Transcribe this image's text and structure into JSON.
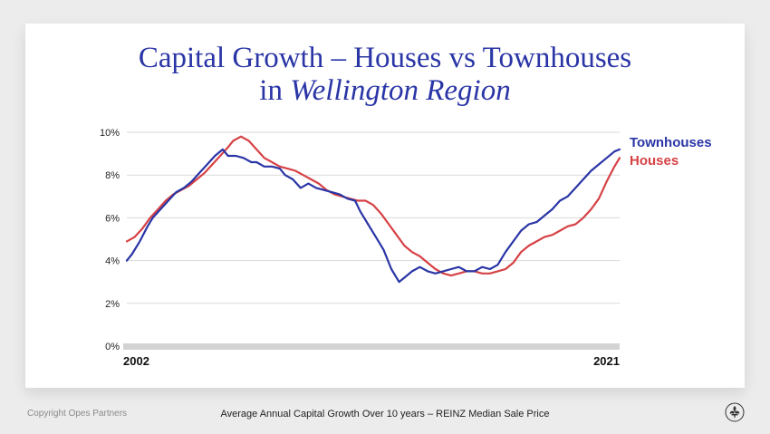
{
  "title_line1": "Capital Growth – Houses vs Townhouses",
  "title_line2_prefix": "in ",
  "title_line2_italic": "Wellington Region",
  "footer": {
    "copyright": "Copyright Opes Partners",
    "caption": "Average Annual Capital Growth Over 10 years – REINZ Median Sale Price"
  },
  "chart_data": {
    "type": "line",
    "title": "",
    "xlabel": "",
    "ylabel": "",
    "xlim": [
      2002,
      2021
    ],
    "ylim": [
      0,
      10
    ],
    "x_tick_labels": [
      {
        "x": 2002,
        "label": "2002"
      },
      {
        "x": 2021,
        "label": "2021"
      }
    ],
    "y_ticks": [
      0,
      2,
      4,
      6,
      8,
      10
    ],
    "y_tick_labels": [
      "0%",
      "2%",
      "4%",
      "6%",
      "8%",
      "10%"
    ],
    "grid": true,
    "legend_placement": "right",
    "series": [
      {
        "name": "Townhouses",
        "color": "#2a35a6",
        "x": [
          2002.0,
          2002.2,
          2002.5,
          2002.8,
          2003.0,
          2003.3,
          2003.6,
          2003.9,
          2004.2,
          2004.5,
          2004.8,
          2005.1,
          2005.4,
          2005.7,
          2005.9,
          2006.2,
          2006.5,
          2006.8,
          2007.0,
          2007.3,
          2007.6,
          2007.9,
          2008.1,
          2008.4,
          2008.7,
          2009.0,
          2009.3,
          2009.6,
          2009.9,
          2010.2,
          2010.5,
          2010.8,
          2011.0,
          2011.3,
          2011.6,
          2011.9,
          2012.2,
          2012.5,
          2012.8,
          2013.0,
          2013.3,
          2013.6,
          2013.9,
          2014.2,
          2014.5,
          2014.8,
          2015.1,
          2015.4,
          2015.7,
          2016.0,
          2016.3,
          2016.6,
          2016.9,
          2017.2,
          2017.5,
          2017.8,
          2018.1,
          2018.4,
          2018.7,
          2019.0,
          2019.3,
          2019.6,
          2019.9,
          2020.2,
          2020.5,
          2020.8,
          2021.0
        ],
        "values": [
          4.0,
          4.3,
          4.9,
          5.6,
          6.0,
          6.4,
          6.8,
          7.2,
          7.4,
          7.7,
          8.1,
          8.5,
          8.9,
          9.2,
          8.9,
          8.9,
          8.8,
          8.6,
          8.6,
          8.4,
          8.4,
          8.3,
          8.0,
          7.8,
          7.4,
          7.6,
          7.4,
          7.3,
          7.2,
          7.1,
          6.9,
          6.8,
          6.3,
          5.7,
          5.1,
          4.5,
          3.6,
          3.0,
          3.3,
          3.5,
          3.7,
          3.5,
          3.4,
          3.5,
          3.6,
          3.7,
          3.5,
          3.5,
          3.7,
          3.6,
          3.8,
          4.4,
          4.9,
          5.4,
          5.7,
          5.8,
          6.1,
          6.4,
          6.8,
          7.0,
          7.4,
          7.8,
          8.2,
          8.5,
          8.8,
          9.1,
          9.2
        ]
      },
      {
        "name": "Houses",
        "color": "#d64145",
        "x": [
          2002.0,
          2002.3,
          2002.6,
          2002.9,
          2003.2,
          2003.5,
          2003.8,
          2004.1,
          2004.4,
          2004.7,
          2005.0,
          2005.3,
          2005.6,
          2005.9,
          2006.1,
          2006.4,
          2006.7,
          2007.0,
          2007.3,
          2007.6,
          2007.9,
          2008.2,
          2008.5,
          2008.8,
          2009.1,
          2009.4,
          2009.7,
          2010.0,
          2010.3,
          2010.6,
          2010.9,
          2011.2,
          2011.5,
          2011.8,
          2012.1,
          2012.4,
          2012.7,
          2013.0,
          2013.3,
          2013.6,
          2013.9,
          2014.2,
          2014.5,
          2014.8,
          2015.1,
          2015.4,
          2015.7,
          2016.0,
          2016.3,
          2016.6,
          2016.9,
          2017.2,
          2017.5,
          2017.8,
          2018.1,
          2018.4,
          2018.7,
          2019.0,
          2019.3,
          2019.6,
          2019.9,
          2020.2,
          2020.5,
          2020.8,
          2021.0
        ],
        "values": [
          4.9,
          5.1,
          5.5,
          6.0,
          6.4,
          6.8,
          7.1,
          7.3,
          7.5,
          7.8,
          8.1,
          8.5,
          8.9,
          9.3,
          9.6,
          9.8,
          9.6,
          9.2,
          8.8,
          8.6,
          8.4,
          8.3,
          8.2,
          8.0,
          7.8,
          7.6,
          7.3,
          7.1,
          7.0,
          6.9,
          6.8,
          6.8,
          6.6,
          6.2,
          5.7,
          5.2,
          4.7,
          4.4,
          4.2,
          3.9,
          3.6,
          3.4,
          3.3,
          3.4,
          3.5,
          3.5,
          3.4,
          3.4,
          3.5,
          3.6,
          3.9,
          4.4,
          4.7,
          4.9,
          5.1,
          5.2,
          5.4,
          5.6,
          5.7,
          6.0,
          6.4,
          6.9,
          7.7,
          8.4,
          8.8
        ]
      }
    ]
  }
}
